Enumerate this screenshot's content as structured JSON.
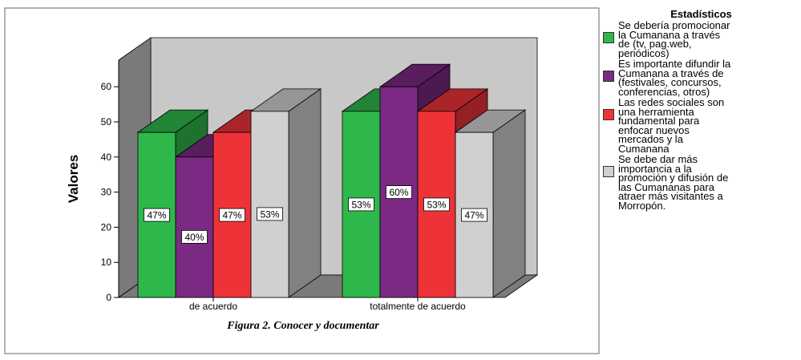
{
  "chart_data": {
    "type": "bar",
    "ylabel": "Valores",
    "xlabel": "",
    "caption": "Figura 2. Conocer y documentar",
    "categories": [
      "de acuerdo",
      "totalmente de acuerdo"
    ],
    "ylim": [
      0,
      60
    ],
    "yticks": [
      0,
      10,
      20,
      30,
      40,
      50,
      60
    ],
    "grid": false,
    "legend_position": "right",
    "legend_title": "Estadísticos",
    "series": [
      {
        "name": "Se debería promocionar\nla Cumanana a través\nde (tv, pag.web,\nperiódicos)",
        "values": [
          47,
          53
        ],
        "labels": [
          "47%",
          "53%"
        ],
        "color": "#2eb84b"
      },
      {
        "name": "Es importante difundir la\nCumanana a través de\n(festivales, concursos,\nconferencias, otros)",
        "values": [
          40,
          60
        ],
        "labels": [
          "40%",
          "60%"
        ],
        "color": "#7a2a82"
      },
      {
        "name": "Las redes sociales son\nuna herramienta\nfundamental para\nenfocar nuevos\nmercados y  la\nCumanana",
        "values": [
          47,
          53
        ],
        "labels": [
          "47%",
          "53%"
        ],
        "color": "#ee3338"
      },
      {
        "name": " Se debe dar más\nimportancia a la\npromoción y difusión de\nlas Cumananas para\natraer más visitantes a\nMorropón.",
        "values": [
          53,
          47
        ],
        "labels": [
          "53%",
          "47%"
        ],
        "color": "#d0d0d0"
      }
    ]
  }
}
